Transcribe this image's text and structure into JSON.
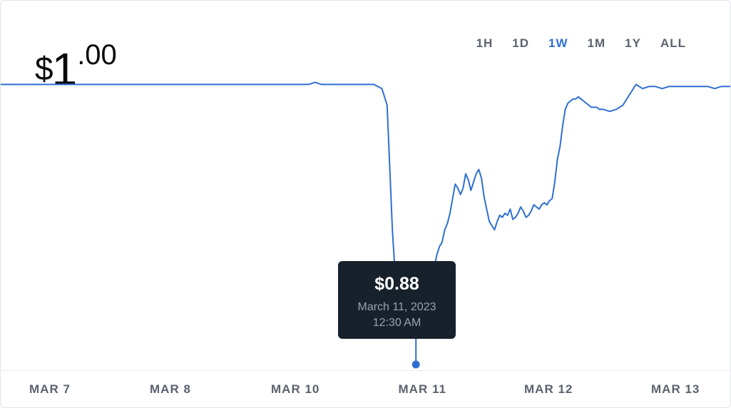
{
  "price": {
    "currency": "$",
    "integer": "1",
    "decimal": ".00"
  },
  "ranges": [
    {
      "label": "1H",
      "active": false
    },
    {
      "label": "1D",
      "active": false
    },
    {
      "label": "1W",
      "active": true
    },
    {
      "label": "1M",
      "active": false
    },
    {
      "label": "1Y",
      "active": false
    },
    {
      "label": "ALL",
      "active": false
    }
  ],
  "tooltip": {
    "value": "$0.88",
    "date": "March 11, 2023",
    "time": "12:30 AM"
  },
  "colors": {
    "line": "#2f6fd0",
    "active_range": "#2f6fd0",
    "tooltip_bg": "#16212b",
    "text_muted": "#5b616e"
  },
  "chart_data": {
    "type": "line",
    "title": "",
    "xlabel": "",
    "ylabel": "",
    "x_ticks": [
      "MAR 7",
      "MAR 8",
      "MAR 10",
      "MAR 11",
      "MAR 12",
      "MAR 13"
    ],
    "x_tick_positions": [
      0,
      1,
      2,
      3,
      4,
      5
    ],
    "xlim": [
      -0.35,
      5.22
    ],
    "ylim": [
      0.86,
      1.03
    ],
    "grid": false,
    "highlight_point": {
      "x": 2.82,
      "y": 0.88
    },
    "series": [
      {
        "name": "",
        "x": [
          -0.35,
          -0.1,
          0.2,
          0.5,
          0.8,
          1.1,
          1.4,
          1.7,
          2.0,
          2.05,
          2.1,
          2.3,
          2.5,
          2.56,
          2.6,
          2.62,
          2.64,
          2.66,
          2.68,
          2.7,
          2.72,
          2.74,
          2.76,
          2.78,
          2.8,
          2.82,
          2.84,
          2.86,
          2.88,
          2.9,
          2.92,
          2.94,
          2.96,
          2.98,
          3.0,
          3.02,
          3.04,
          3.06,
          3.08,
          3.1,
          3.12,
          3.14,
          3.16,
          3.18,
          3.2,
          3.22,
          3.24,
          3.26,
          3.28,
          3.3,
          3.32,
          3.34,
          3.36,
          3.38,
          3.4,
          3.42,
          3.44,
          3.46,
          3.48,
          3.5,
          3.52,
          3.54,
          3.56,
          3.58,
          3.6,
          3.62,
          3.64,
          3.66,
          3.68,
          3.7,
          3.72,
          3.74,
          3.76,
          3.78,
          3.8,
          3.82,
          3.84,
          3.86,
          3.88,
          3.9,
          3.92,
          3.94,
          3.96,
          3.98,
          4.0,
          4.02,
          4.04,
          4.06,
          4.08,
          4.1,
          4.12,
          4.14,
          4.16,
          4.18,
          4.2,
          4.22,
          4.25,
          4.3,
          4.35,
          4.4,
          4.45,
          4.5,
          4.55,
          4.6,
          4.65,
          4.7,
          4.75,
          4.8,
          4.85,
          4.9,
          4.95,
          5.0,
          5.05,
          5.1,
          5.15,
          5.22
        ],
        "y": [
          1.0,
          1.0,
          1.0,
          1.0,
          1.0,
          1.0,
          1.0,
          1.0,
          1.0,
          1.001,
          1.0,
          1.0,
          1.0,
          0.998,
          0.99,
          0.96,
          0.93,
          0.91,
          0.902,
          0.895,
          0.89,
          0.885,
          0.88,
          0.88,
          0.885,
          0.88,
          0.883,
          0.887,
          0.891,
          0.895,
          0.9,
          0.905,
          0.912,
          0.918,
          0.922,
          0.924,
          0.93,
          0.933,
          0.938,
          0.945,
          0.952,
          0.95,
          0.947,
          0.95,
          0.957,
          0.954,
          0.949,
          0.953,
          0.957,
          0.959,
          0.955,
          0.946,
          0.94,
          0.934,
          0.932,
          0.93,
          0.934,
          0.937,
          0.936,
          0.938,
          0.937,
          0.94,
          0.935,
          0.936,
          0.938,
          0.941,
          0.939,
          0.936,
          0.937,
          0.939,
          0.942,
          0.941,
          0.94,
          0.942,
          0.943,
          0.942,
          0.944,
          0.945,
          0.953,
          0.964,
          0.97,
          0.98,
          0.988,
          0.991,
          0.992,
          0.993,
          0.993,
          0.994,
          0.993,
          0.992,
          0.991,
          0.99,
          0.989,
          0.989,
          0.989,
          0.988,
          0.988,
          0.987,
          0.988,
          0.99,
          0.995,
          1.0,
          0.998,
          0.999,
          0.999,
          0.998,
          0.999,
          0.999,
          0.999,
          0.999,
          0.999,
          0.999,
          0.999,
          0.998,
          0.999,
          0.999
        ]
      }
    ]
  }
}
